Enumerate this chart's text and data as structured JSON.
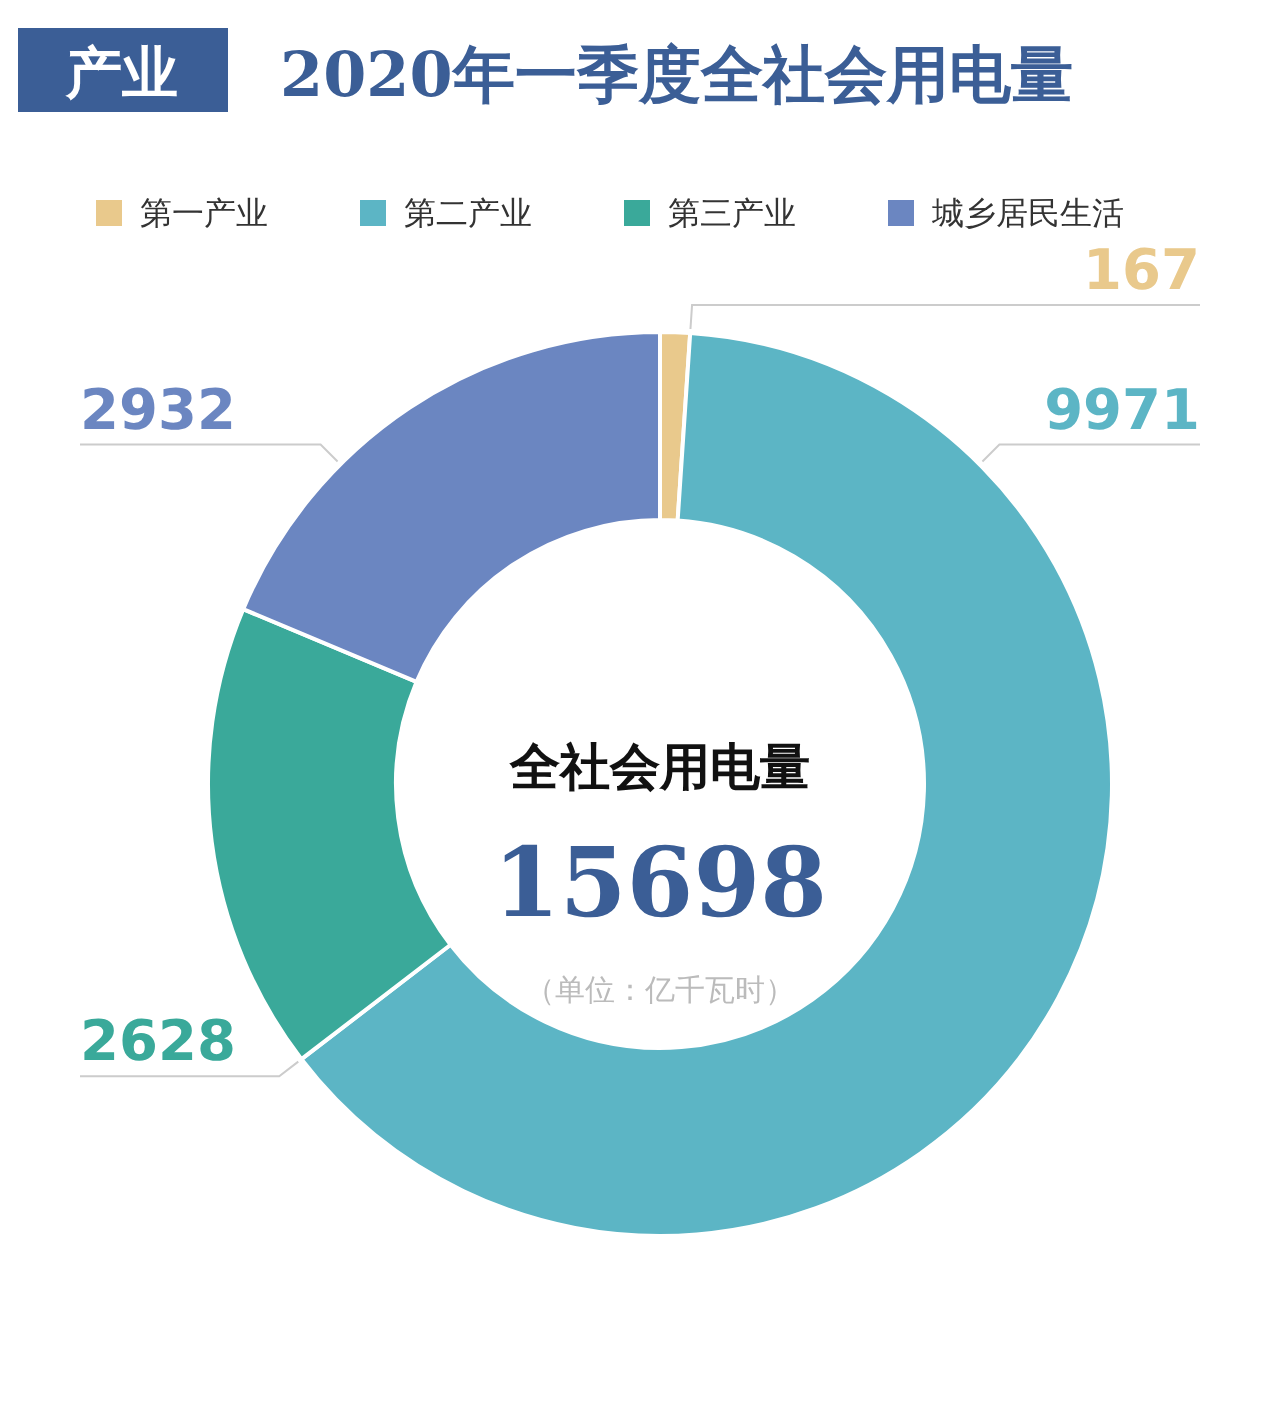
{
  "chart_data": {
    "type": "donut",
    "title": "2020年一季度全社会用电量",
    "categories": [
      "第一产业",
      "第二产业",
      "第三产业",
      "城乡居民生活"
    ],
    "values": [
      167,
      9971,
      2628,
      2932
    ],
    "colors": [
      "#e9c98c",
      "#5cb5c5",
      "#3aa99a",
      "#6b86c1"
    ],
    "legend": "top",
    "data_labels": true,
    "annotations": [
      "产业",
      "全社会用电量",
      "15698",
      "（单位：亿千瓦时）"
    ]
  }
}
